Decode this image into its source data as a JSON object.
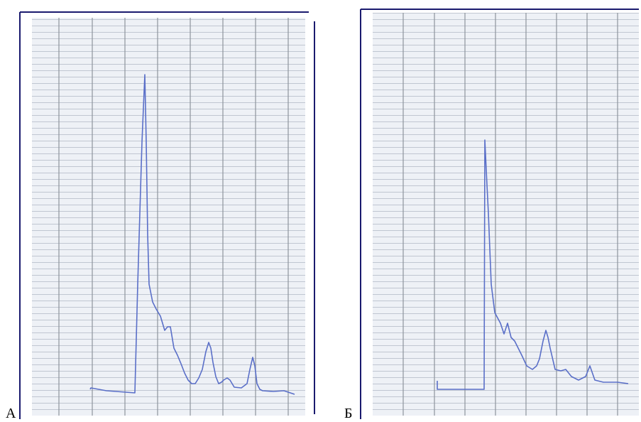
{
  "panels": [
    {
      "label": "А"
    },
    {
      "label": "Б"
    }
  ]
}
